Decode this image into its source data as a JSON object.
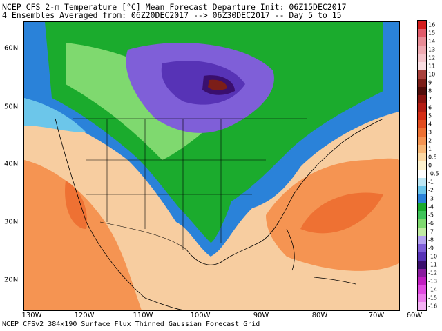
{
  "header": {
    "line1": "NCEP CFS 2-m Temperature [°C] Mean Forecast Departure Init: 06Z15DEC2017",
    "line2": "4 Ensembles Averaged from: 06Z20DEC2017 --> 06Z30DEC2017 -- Day 5 to 15"
  },
  "footer": {
    "text": "NCEP CFSv2 384x190 Surface Flux Thinned Gaussian Forecast Grid"
  },
  "axes": {
    "lon_labels": [
      "130W",
      "120W",
      "110W",
      "100W",
      "90W",
      "80W",
      "70W",
      "60W"
    ],
    "lat_labels": [
      "60N",
      "50N",
      "40N",
      "30N",
      "20N"
    ]
  },
  "colorbar": {
    "levels": [
      {
        "label": "16",
        "color": "#d41d1d"
      },
      {
        "label": "15",
        "color": "#e15c6b"
      },
      {
        "label": "14",
        "color": "#e88c96"
      },
      {
        "label": "13",
        "color": "#efaab2"
      },
      {
        "label": "12",
        "color": "#f4c4cb"
      },
      {
        "label": "11",
        "color": "#f9dde1"
      },
      {
        "label": "10",
        "color": "#a8413c"
      },
      {
        "label": "9",
        "color": "#7c1e18"
      },
      {
        "label": "8",
        "color": "#520d0a"
      },
      {
        "label": "7",
        "color": "#8a1410"
      },
      {
        "label": "6",
        "color": "#b31d14"
      },
      {
        "label": "5",
        "color": "#d42d16"
      },
      {
        "label": "4",
        "color": "#e24d1f"
      },
      {
        "label": "3",
        "color": "#ee7133"
      },
      {
        "label": "2",
        "color": "#f59452"
      },
      {
        "label": "1",
        "color": "#f8b877"
      },
      {
        "label": "0.5",
        "color": "#fbd8a3"
      },
      {
        "label": "0",
        "color": "#fdf1cd"
      },
      {
        "label": "-0.5",
        "color": "#ffffff"
      },
      {
        "label": "-1",
        "color": "#bde7f4"
      },
      {
        "label": "-2",
        "color": "#6cc6ea"
      },
      {
        "label": "-3",
        "color": "#2a82d9"
      },
      {
        "label": "-4",
        "color": "#1bab2d"
      },
      {
        "label": "-5",
        "color": "#3fc45a"
      },
      {
        "label": "-6",
        "color": "#7fd96f"
      },
      {
        "label": "-7",
        "color": "#c1eba3"
      },
      {
        "label": "-8",
        "color": "#b4a3ef"
      },
      {
        "label": "-9",
        "color": "#7f5fd8"
      },
      {
        "label": "-10",
        "color": "#5733b6"
      },
      {
        "label": "-11",
        "color": "#3a0f6e"
      },
      {
        "label": "-12",
        "color": "#8a1d9e"
      },
      {
        "label": "-13",
        "color": "#c01fc0"
      },
      {
        "label": "-14",
        "color": "#e04be0"
      },
      {
        "label": "-15",
        "color": "#ec7dec"
      },
      {
        "label": "-16",
        "color": "#f3b2f3"
      }
    ]
  },
  "colors": {
    "ocean_warm": "#f7cda0",
    "warm_orange": "#f59452",
    "deep_orange": "#ee7133",
    "cool_blue": "#2a82d9",
    "green": "#1bab2d",
    "light_green": "#7fd96f",
    "purple": "#5733b6",
    "deep_purple": "#3a0f6e",
    "maroon": "#7c1e18"
  }
}
